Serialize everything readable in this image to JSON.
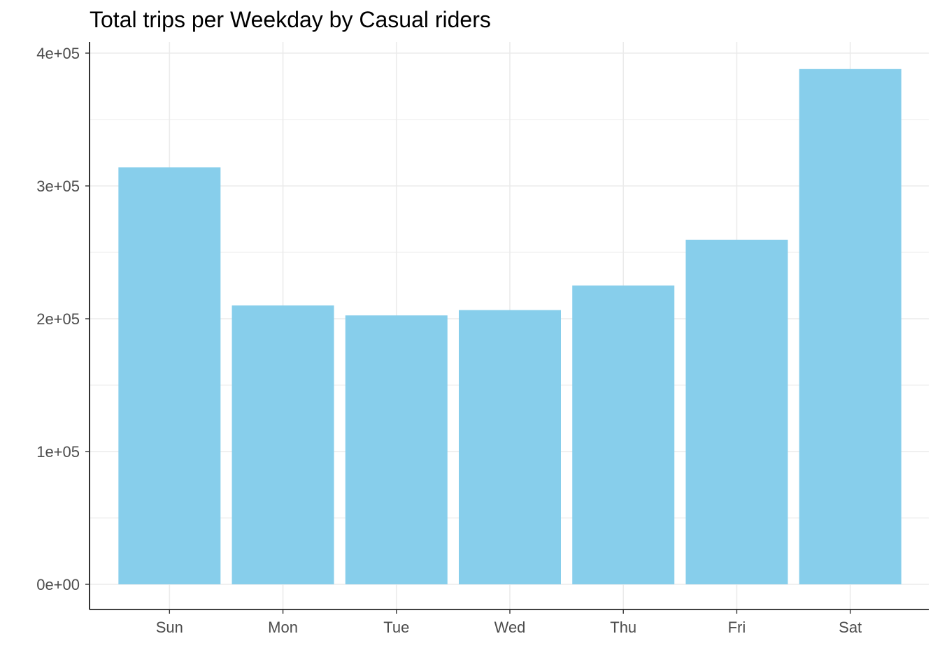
{
  "chart_data": {
    "type": "bar",
    "title": "Total trips per Weekday by Casual riders",
    "xlabel": "",
    "ylabel": "",
    "categories": [
      "Sun",
      "Mon",
      "Tue",
      "Wed",
      "Thu",
      "Fri",
      "Sat"
    ],
    "values": [
      314000,
      210000,
      202500,
      206500,
      225000,
      259500,
      388000
    ],
    "ylim": [
      0,
      400000
    ],
    "y_ticks": [
      0,
      100000,
      200000,
      300000,
      400000
    ],
    "y_tick_labels": [
      "0e+00",
      "1e+05",
      "2e+05",
      "3e+05",
      "4e+05"
    ],
    "grid": true,
    "legend": "none",
    "bar_color": "#87CEEB",
    "grid_color": "#ebebeb",
    "axis_color": "#000000"
  }
}
